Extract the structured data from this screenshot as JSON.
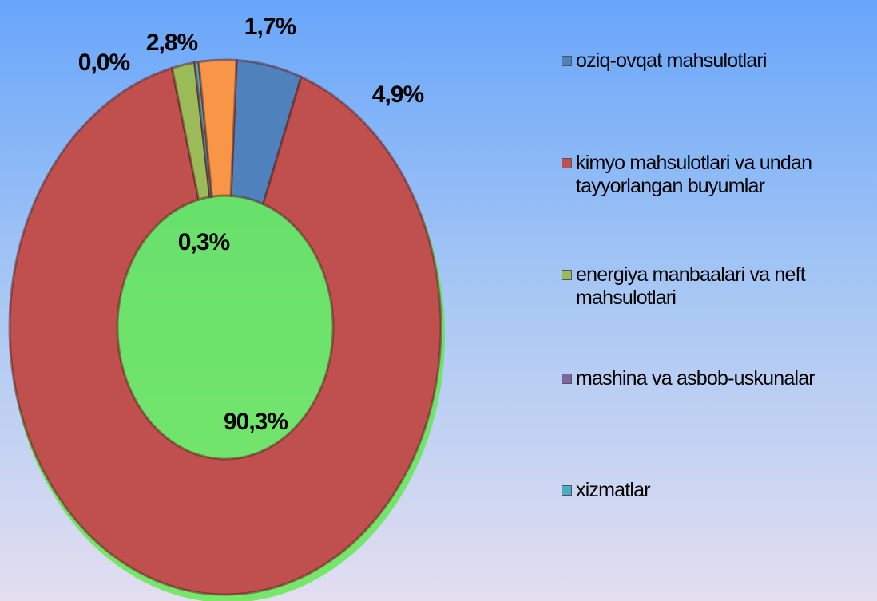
{
  "chart_data": {
    "type": "donut",
    "categories": [
      "oziq-ovqat mahsulotlari",
      "kimyo mahsulotlari va undan tayyorlangan buyumlar",
      "energiya manbaalari va neft mahsulotlari",
      "mashina va asbob-uskunalar",
      "xizmatlar",
      null
    ],
    "values": [
      4.9,
      90.3,
      1.7,
      0.0,
      0.3,
      2.8
    ],
    "value_labels": [
      "4,9%",
      "90,3%",
      "1,7%",
      "0,0%",
      "0,3%",
      "2,8%"
    ],
    "colors": [
      "#4f81bd",
      "#c0504d",
      "#9bbb59",
      "#8064a2",
      "#4bacc6",
      "#f79646"
    ]
  }
}
